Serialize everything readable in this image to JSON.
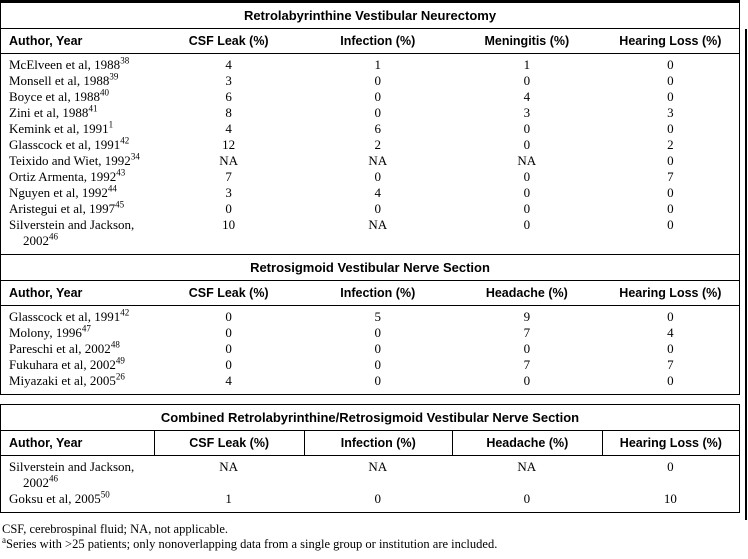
{
  "tables": [
    {
      "title": "Retrolabyrinthine Vestibular Neurectomy",
      "columns": [
        "Author, Year",
        "CSF Leak (%)",
        "Infection (%)",
        "Meningitis (%)",
        "Hearing Loss (%)"
      ],
      "rows": [
        {
          "author": "McElveen et al, 1988",
          "ref": "38",
          "values": [
            "4",
            "1",
            "1",
            "0"
          ]
        },
        {
          "author": "Monsell et al, 1988",
          "ref": "39",
          "values": [
            "3",
            "0",
            "0",
            "0"
          ]
        },
        {
          "author": "Boyce et al, 1988",
          "ref": "40",
          "values": [
            "6",
            "0",
            "4",
            "0"
          ]
        },
        {
          "author": "Zini et al, 1988",
          "ref": "41",
          "values": [
            "8",
            "0",
            "3",
            "3"
          ]
        },
        {
          "author": "Kemink et al, 1991",
          "ref": "1",
          "values": [
            "4",
            "6",
            "0",
            "0"
          ]
        },
        {
          "author": "Glasscock et al, 1991",
          "ref": "42",
          "values": [
            "12",
            "2",
            "0",
            "2"
          ]
        },
        {
          "author": "Teixido and Wiet, 1992",
          "ref": "34",
          "values": [
            "NA",
            "NA",
            "NA",
            "0"
          ]
        },
        {
          "author": "Ortiz Armenta, 1992",
          "ref": "43",
          "values": [
            "7",
            "0",
            "0",
            "7"
          ]
        },
        {
          "author": "Nguyen et al, 1992",
          "ref": "44",
          "values": [
            "3",
            "4",
            "0",
            "0"
          ]
        },
        {
          "author": "Aristegui et al, 1997",
          "ref": "45",
          "values": [
            "0",
            "0",
            "0",
            "0"
          ]
        },
        {
          "author": "Silverstein and Jackson,",
          "author_line2": "2002",
          "ref": "46",
          "values": [
            "10",
            "NA",
            "0",
            "0"
          ]
        }
      ],
      "combined": false
    },
    {
      "title": "Retrosigmoid Vestibular Nerve Section",
      "columns": [
        "Author, Year",
        "CSF Leak (%)",
        "Infection (%)",
        "Headache (%)",
        "Hearing Loss (%)"
      ],
      "rows": [
        {
          "author": "Glasscock et al, 1991",
          "ref": "42",
          "values": [
            "0",
            "5",
            "9",
            "0"
          ]
        },
        {
          "author": "Molony, 1996",
          "ref": "47",
          "values": [
            "0",
            "0",
            "7",
            "4"
          ]
        },
        {
          "author": "Pareschi et al, 2002",
          "ref": "48",
          "values": [
            "0",
            "0",
            "0",
            "0"
          ]
        },
        {
          "author": "Fukuhara et al, 2002",
          "ref": "49",
          "values": [
            "0",
            "0",
            "7",
            "7"
          ]
        },
        {
          "author": "Miyazaki et al, 2005",
          "ref": "26",
          "values": [
            "4",
            "0",
            "0",
            "0"
          ]
        }
      ],
      "combined": false
    },
    {
      "title": "Combined Retrolabyrinthine/Retrosigmoid Vestibular Nerve Section",
      "columns": [
        "Author, Year",
        "CSF Leak (%)",
        "Infection (%)",
        "Headache (%)",
        "Hearing Loss (%)"
      ],
      "rows": [
        {
          "author": "Silverstein and Jackson,",
          "author_line2": "2002",
          "ref": "46",
          "values": [
            "NA",
            "NA",
            "NA",
            "0"
          ]
        },
        {
          "author": "Goksu et al, 2005",
          "ref": "50",
          "values": [
            "1",
            "0",
            "0",
            "10"
          ]
        }
      ],
      "combined": true
    }
  ],
  "footnotes": {
    "abbreviations": "CSF, cerebrospinal fluid; NA, not applicable.",
    "series_marker": "a",
    "series_note": "Series with >25 patients; only nonoverlapping data from a single group or institution are included."
  }
}
